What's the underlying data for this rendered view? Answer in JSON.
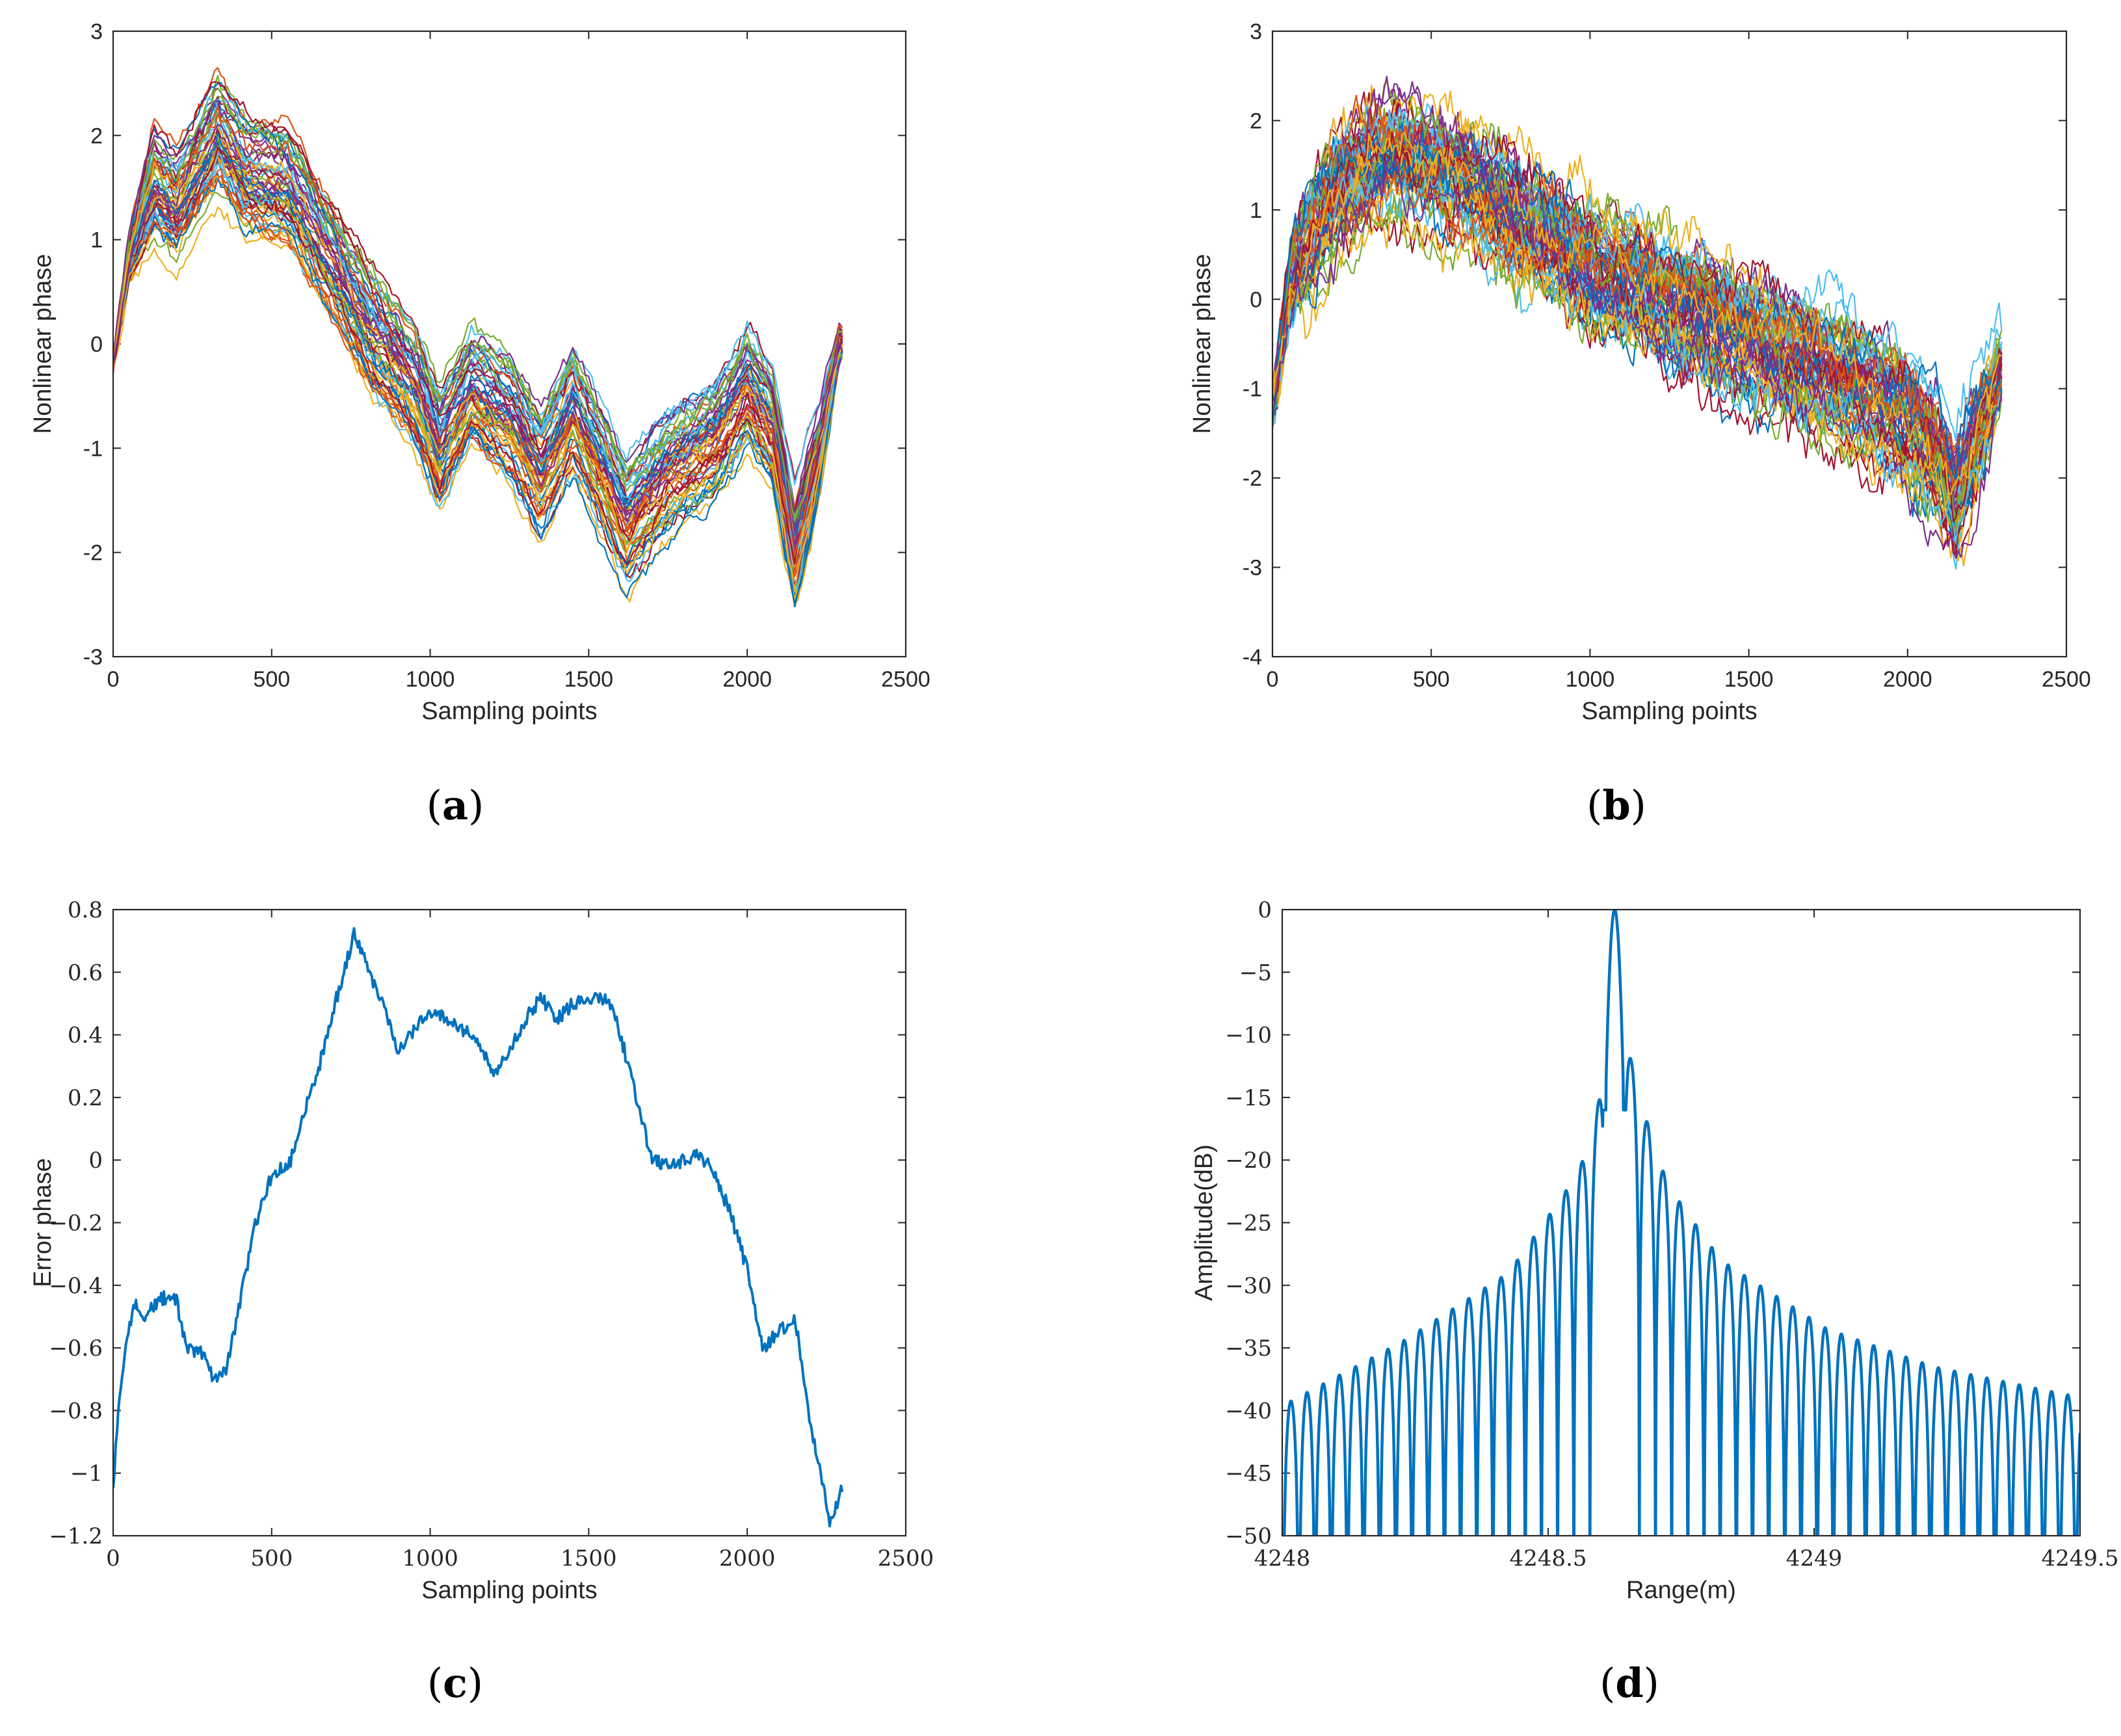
{
  "colors": {
    "matlab_palette": [
      "#0072BD",
      "#D95319",
      "#EDB120",
      "#7E2F8E",
      "#77AC30",
      "#4DBEEE",
      "#A2142F"
    ],
    "line_blue": "#0072BD",
    "axis": "#262626"
  },
  "chart_data": [
    {
      "id": "a",
      "type": "line",
      "caption": {
        "open": "(",
        "letter": "a",
        "close": ")"
      },
      "xlabel": "Sampling points",
      "ylabel": "Nonlinear phase",
      "xlim": [
        0,
        2500
      ],
      "ylim": [
        -3,
        3
      ],
      "xticks": [
        "0",
        "500",
        "1000",
        "1500",
        "2000",
        "2500"
      ],
      "yticks": [
        "-3",
        "-2",
        "-1",
        "0",
        "1",
        "2",
        "3"
      ],
      "n_series": 60,
      "series_count_note": "many overlaid colored traces",
      "x_end": 2300,
      "mean_curve": [
        [
          0,
          -0.2
        ],
        [
          50,
          0.8
        ],
        [
          130,
          1.5
        ],
        [
          200,
          1.3
        ],
        [
          330,
          2.0
        ],
        [
          420,
          1.6
        ],
        [
          550,
          1.5
        ],
        [
          650,
          1.0
        ],
        [
          800,
          0.2
        ],
        [
          950,
          -0.4
        ],
        [
          1030,
          -1.0
        ],
        [
          1130,
          -0.4
        ],
        [
          1250,
          -0.7
        ],
        [
          1350,
          -1.2
        ],
        [
          1450,
          -0.6
        ],
        [
          1560,
          -1.3
        ],
        [
          1620,
          -1.7
        ],
        [
          1750,
          -1.2
        ],
        [
          1900,
          -0.9
        ],
        [
          2000,
          -0.4
        ],
        [
          2080,
          -0.8
        ],
        [
          2150,
          -2.0
        ],
        [
          2230,
          -1.0
        ],
        [
          2290,
          0.0
        ]
      ],
      "spread": 0.45,
      "noise": 0.09
    },
    {
      "id": "b",
      "type": "line",
      "caption": {
        "open": "(",
        "letter": "b",
        "close": ")"
      },
      "xlabel": "Sampling points",
      "ylabel": "Nonlinear phase",
      "xlim": [
        0,
        2500
      ],
      "ylim": [
        -4,
        3
      ],
      "xticks": [
        "0",
        "500",
        "1000",
        "1500",
        "2000",
        "2500"
      ],
      "yticks": [
        "-4",
        "-3",
        "-2",
        "-1",
        "0",
        "1",
        "2",
        "3"
      ],
      "n_series": 60,
      "series_count_note": "many overlaid colored traces",
      "x_end": 2300,
      "mean_curve": [
        [
          0,
          -1.2
        ],
        [
          60,
          0.2
        ],
        [
          200,
          1.2
        ],
        [
          380,
          1.6
        ],
        [
          500,
          1.5
        ],
        [
          650,
          1.2
        ],
        [
          800,
          0.8
        ],
        [
          1000,
          0.3
        ],
        [
          1200,
          0.0
        ],
        [
          1400,
          -0.3
        ],
        [
          1600,
          -0.6
        ],
        [
          1800,
          -0.9
        ],
        [
          2000,
          -1.3
        ],
        [
          2100,
          -1.8
        ],
        [
          2150,
          -2.3
        ],
        [
          2220,
          -1.5
        ],
        [
          2290,
          -0.8
        ]
      ],
      "spread": 0.55,
      "noise": 0.28
    },
    {
      "id": "c",
      "type": "line",
      "caption": {
        "open": "(",
        "letter": "c",
        "close": ")"
      },
      "xlabel": "Sampling points",
      "ylabel": "Error phase",
      "xlim": [
        0,
        2500
      ],
      "ylim": [
        -1.2,
        0.8
      ],
      "xticks": [
        "0",
        "500",
        "1000",
        "1500",
        "2000",
        "2500"
      ],
      "yticks": [
        "−1.2",
        "−1",
        "−0.8",
        "−0.6",
        "−0.4",
        "−0.2",
        "0",
        "0.2",
        "0.4",
        "0.6",
        "0.8"
      ],
      "series": [
        {
          "name": "error phase",
          "points": [
            [
              0,
              -1.05
            ],
            [
              20,
              -0.75
            ],
            [
              40,
              -0.6
            ],
            [
              70,
              -0.45
            ],
            [
              100,
              -0.5
            ],
            [
              150,
              -0.44
            ],
            [
              200,
              -0.45
            ],
            [
              230,
              -0.6
            ],
            [
              280,
              -0.62
            ],
            [
              320,
              -0.7
            ],
            [
              360,
              -0.66
            ],
            [
              400,
              -0.45
            ],
            [
              450,
              -0.2
            ],
            [
              500,
              -0.05
            ],
            [
              560,
              0.0
            ],
            [
              600,
              0.15
            ],
            [
              650,
              0.3
            ],
            [
              700,
              0.5
            ],
            [
              760,
              0.72
            ],
            [
              800,
              0.62
            ],
            [
              850,
              0.5
            ],
            [
              900,
              0.35
            ],
            [
              950,
              0.42
            ],
            [
              1000,
              0.47
            ],
            [
              1050,
              0.45
            ],
            [
              1100,
              0.42
            ],
            [
              1150,
              0.38
            ],
            [
              1200,
              0.28
            ],
            [
              1250,
              0.35
            ],
            [
              1300,
              0.45
            ],
            [
              1350,
              0.52
            ],
            [
              1400,
              0.45
            ],
            [
              1450,
              0.5
            ],
            [
              1500,
              0.51
            ],
            [
              1560,
              0.52
            ],
            [
              1600,
              0.4
            ],
            [
              1650,
              0.2
            ],
            [
              1700,
              0.0
            ],
            [
              1750,
              -0.02
            ],
            [
              1800,
              0.0
            ],
            [
              1850,
              0.02
            ],
            [
              1900,
              -0.05
            ],
            [
              1950,
              -0.18
            ],
            [
              2000,
              -0.35
            ],
            [
              2050,
              -0.6
            ],
            [
              2100,
              -0.55
            ],
            [
              2150,
              -0.5
            ],
            [
              2200,
              -0.85
            ],
            [
              2260,
              -1.15
            ],
            [
              2300,
              -1.05
            ]
          ]
        }
      ]
    },
    {
      "id": "d",
      "type": "line",
      "caption": {
        "open": "(",
        "letter": "d",
        "close": ")"
      },
      "xlabel": "Range(m)",
      "ylabel": "Amplitude(dB)",
      "xlim": [
        4248,
        4249.5
      ],
      "ylim": [
        -50,
        0
      ],
      "xticks": [
        "4248",
        "4248.5",
        "4249",
        "4249.5"
      ],
      "yticks": [
        "−50",
        "−45",
        "−40",
        "−35",
        "−30",
        "−25",
        "−20",
        "−15",
        "−10",
        "−5",
        "0"
      ],
      "peak_position": 4248.625,
      "mainlobe_half_width": 0.016,
      "sidelobe_spacing": 0.0304,
      "envelope": [
        [
          -0.62,
          -39.5
        ],
        [
          -0.4,
          -34.5
        ],
        [
          -0.2,
          -29.0
        ],
        [
          -0.1,
          -23.0
        ],
        [
          -0.07,
          -21.0
        ],
        [
          -0.04,
          -18.0
        ],
        [
          -0.02,
          -12.5
        ],
        [
          0,
          0
        ],
        [
          0.02,
          -10.0
        ],
        [
          0.05,
          -15.5
        ],
        [
          0.1,
          -22.0
        ],
        [
          0.2,
          -28.0
        ],
        [
          0.4,
          -33.5
        ],
        [
          0.6,
          -36.5
        ],
        [
          0.88,
          -39.0
        ]
      ]
    }
  ]
}
